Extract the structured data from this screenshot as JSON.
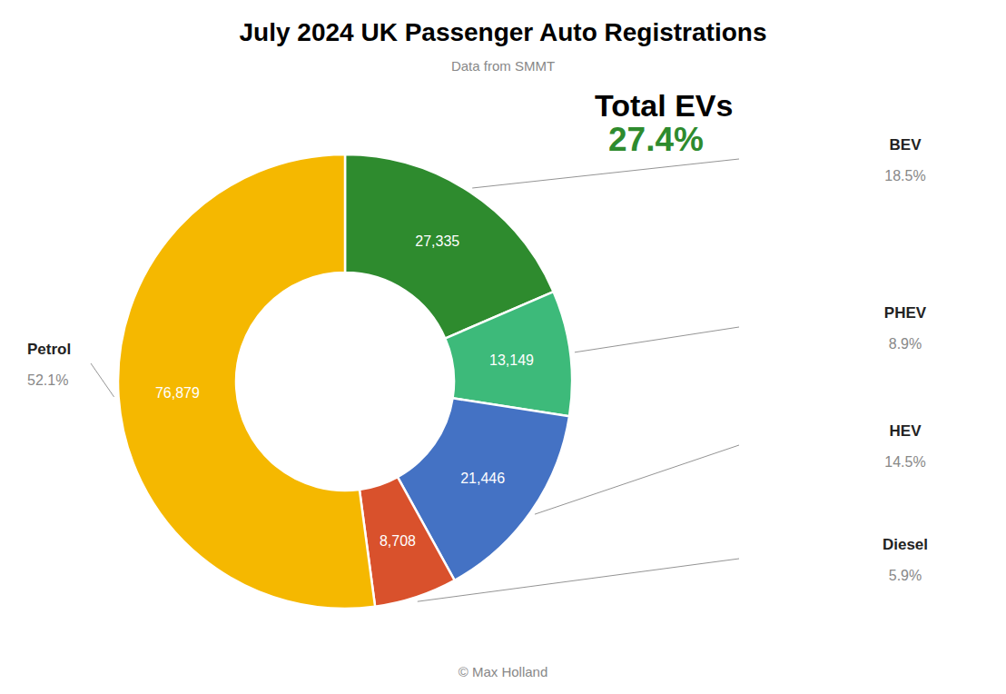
{
  "chart_data": {
    "type": "pie",
    "title": "July 2024 UK Passenger Auto Registrations",
    "subtitle": "Data from SMMT",
    "caption": "© Max Holland",
    "categories": [
      "BEV",
      "PHEV",
      "HEV",
      "Diesel",
      "Petrol"
    ],
    "values": [
      27335,
      13149,
      21446,
      8708,
      76879
    ],
    "value_labels": [
      "27,335",
      "13,149",
      "21,446",
      "8,708",
      "76,879"
    ],
    "data_labels": true,
    "colors": [
      "#2e8b2e",
      "#3dba7a",
      "#4472c4",
      "#d9512c",
      "#f5b800"
    ],
    "shares": [
      18.5,
      8.9,
      14.5,
      5.9,
      52.1
    ],
    "share_labels": [
      "18.5%",
      "8.9%",
      "14.5%",
      "5.9%",
      "52.1%"
    ],
    "annotations": [
      {
        "label": "Total EVs"
      },
      {
        "value": 27.4,
        "label": "27.4%",
        "color": "#2e8b2e"
      }
    ]
  }
}
